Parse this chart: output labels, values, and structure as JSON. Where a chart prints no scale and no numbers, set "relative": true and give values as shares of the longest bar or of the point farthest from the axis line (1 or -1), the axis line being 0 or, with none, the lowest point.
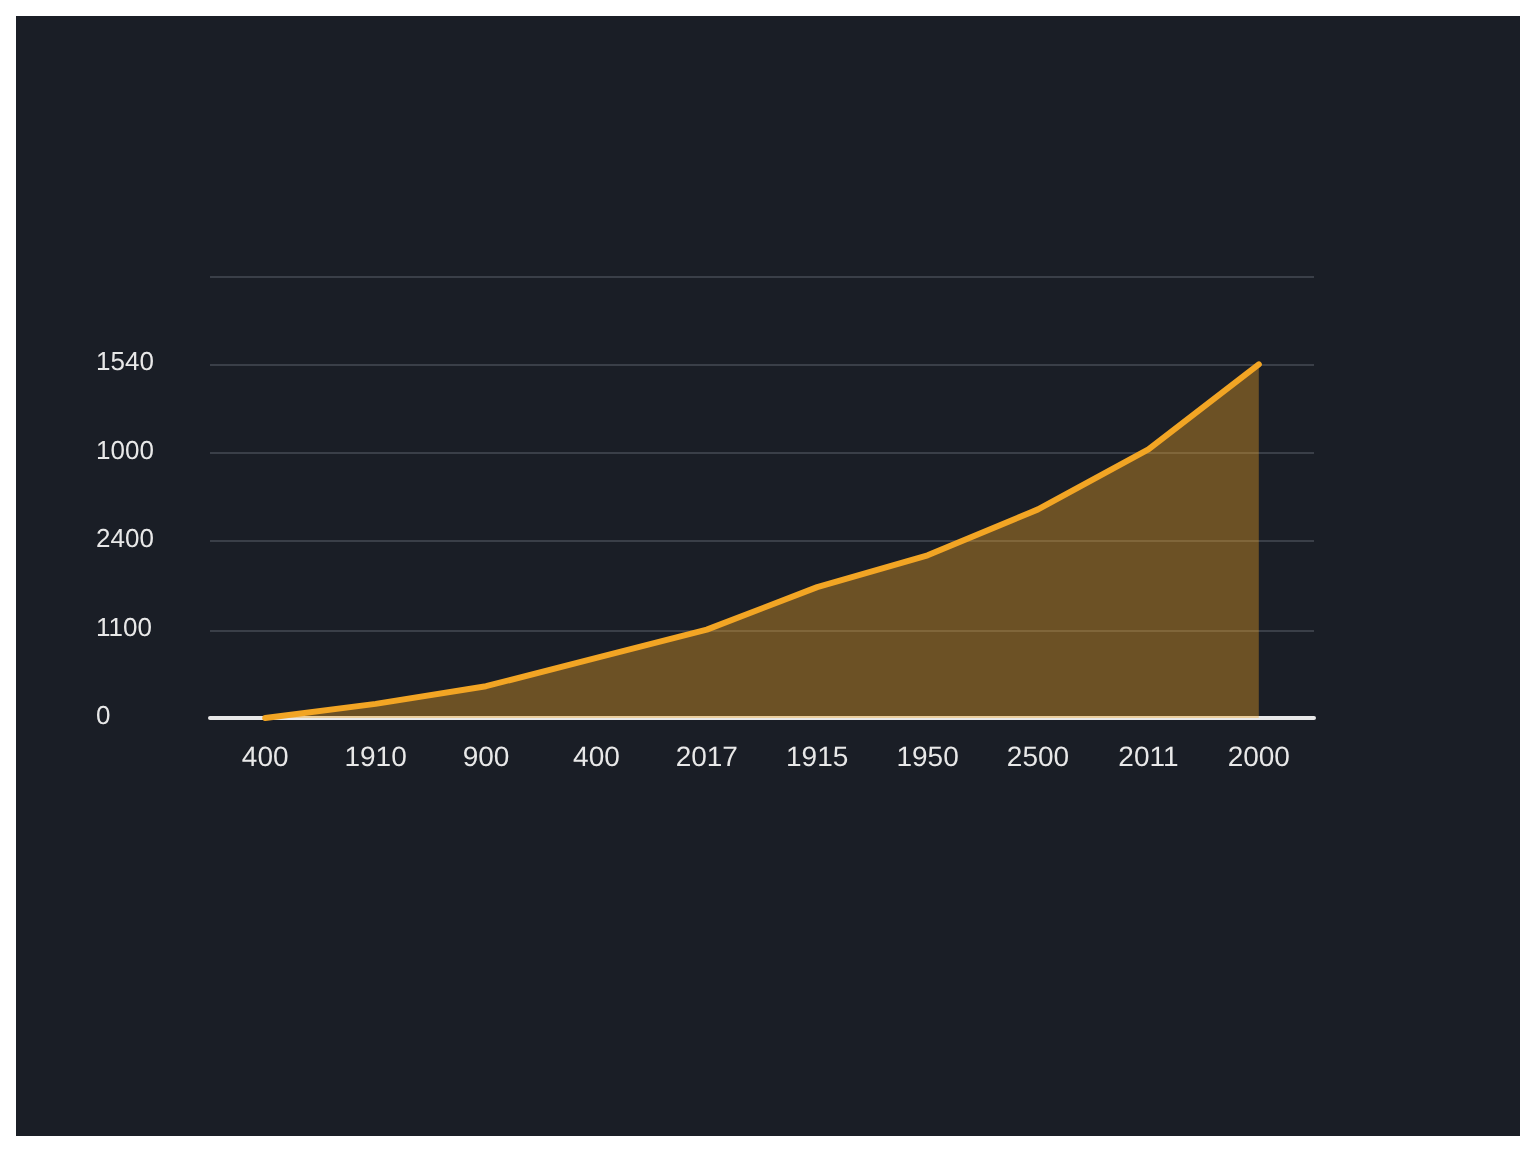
{
  "chart_data": {
    "type": "area",
    "relative": true,
    "categories": [
      "400",
      "1910",
      "900",
      "400",
      "2017",
      "1915",
      "1950",
      "2500",
      "2011",
      "2000"
    ],
    "series": [
      {
        "color": "#f2a524",
        "values": [
          0,
          0.04,
          0.09,
          0.17,
          0.25,
          0.37,
          0.46,
          0.59,
          0.76,
          1
        ]
      }
    ],
    "annotations": [
      "0",
      "1100",
      "2400",
      "1000",
      "1540"
    ],
    "grid": "y",
    "marker": "none",
    "line_style": "solid"
  }
}
